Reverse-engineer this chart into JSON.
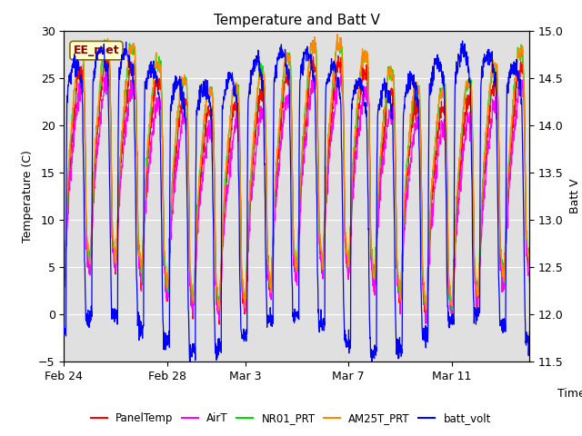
{
  "title": "Temperature and Batt V",
  "xlabel": "Time",
  "ylabel_left": "Temperature (C)",
  "ylabel_right": "Batt V",
  "annotation_text": "EE_met",
  "ylim_left": [
    -5,
    30
  ],
  "ylim_right": [
    11.5,
    15.0
  ],
  "yticks_left": [
    -5,
    0,
    5,
    10,
    15,
    20,
    25,
    30
  ],
  "yticks_right": [
    11.5,
    12.0,
    12.5,
    13.0,
    13.5,
    14.0,
    14.5,
    15.0
  ],
  "date_labels": [
    "Feb 24",
    "Feb 28",
    "Mar 3",
    "Mar 7",
    "Mar 11"
  ],
  "date_positions": [
    0,
    4,
    7,
    11,
    15
  ],
  "colors": {
    "PanelTemp": "#ff0000",
    "AirT": "#ff00ff",
    "NR01_PRT": "#00dd00",
    "AM25T_PRT": "#ff8800",
    "batt_volt": "#0000ff"
  },
  "legend_labels": [
    "PanelTemp",
    "AirT",
    "NR01_PRT",
    "AM25T_PRT",
    "batt_volt"
  ],
  "background_color": "#ffffff",
  "plot_background": "#e0e0e0",
  "grid_color": "#ffffff",
  "title_fontsize": 11,
  "axis_fontsize": 9,
  "tick_fontsize": 9,
  "n_days": 18,
  "pts_per_day": 96
}
